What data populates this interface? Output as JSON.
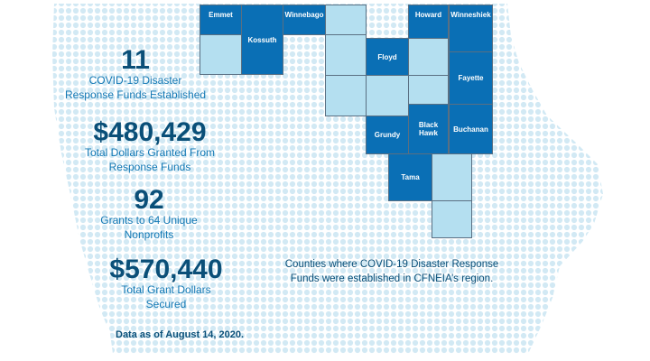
{
  "counties": [
    {
      "id": "emmet",
      "label": "Emmet",
      "style": "dark"
    },
    {
      "id": "kossuth",
      "label": "Kossuth",
      "style": "dark"
    },
    {
      "id": "winnebago",
      "label": "Winnebago",
      "style": "dark"
    },
    {
      "id": "worth",
      "label": "",
      "style": "light"
    },
    {
      "id": "howard",
      "label": "Howard",
      "style": "dark"
    },
    {
      "id": "winneshiek",
      "label": "Winneshiek",
      "style": "dark"
    },
    {
      "id": "palo-alto",
      "label": "",
      "style": "light"
    },
    {
      "id": "cerro-gordo",
      "label": "",
      "style": "light"
    },
    {
      "id": "floyd",
      "label": "Floyd",
      "style": "dark"
    },
    {
      "id": "chickasaw",
      "label": "",
      "style": "light"
    },
    {
      "id": "fayette",
      "label": "Fayette",
      "style": "dark"
    },
    {
      "id": "franklin",
      "label": "",
      "style": "light"
    },
    {
      "id": "butler",
      "label": "",
      "style": "light"
    },
    {
      "id": "bremer",
      "label": "",
      "style": "light"
    },
    {
      "id": "grundy",
      "label": "Grundy",
      "style": "dark"
    },
    {
      "id": "black-hawk",
      "label": "Black Hawk",
      "style": "dark"
    },
    {
      "id": "buchanan",
      "label": "Buchanan",
      "style": "dark"
    },
    {
      "id": "tama",
      "label": "Tama",
      "style": "dark"
    },
    {
      "id": "benton",
      "label": "",
      "style": "light"
    },
    {
      "id": "linn",
      "label": "",
      "style": "light"
    }
  ],
  "stats": {
    "funds": {
      "value": "11",
      "label_1": "COVID-19 Disaster",
      "label_2": "Response Funds Established"
    },
    "granted": {
      "value": "$480,429",
      "label_1": "Total Dollars Granted  From",
      "label_2": "Response Funds"
    },
    "grants": {
      "value": "92",
      "label_1": "Grants to 64 Unique",
      "label_2": "Nonprofits"
    },
    "secured": {
      "value": "$570,440",
      "label_1": "Total Grant Dollars",
      "label_2": "Secured"
    }
  },
  "caption": {
    "line_1": "Counties where COVID-19 Disaster Response",
    "line_2": "Funds were established in CFNEIA’s region."
  },
  "date_note": "Data as of August 14, 2020.",
  "colors": {
    "dark_county": "#0a6fb5",
    "light_county": "#b4dff0",
    "dots": "#d2e9f4",
    "text": "#0a4f78"
  }
}
